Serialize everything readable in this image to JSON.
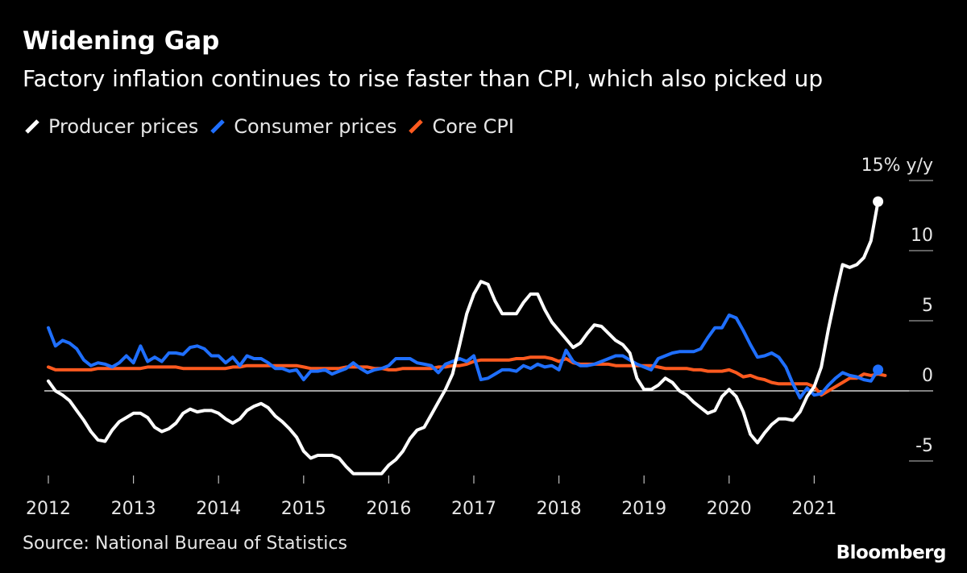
{
  "title": "Widening Gap",
  "subtitle": "Factory inflation continues to rise faster than CPI, which also picked up",
  "source": "Source: National Bureau of Statistics",
  "brand": "Bloomberg",
  "colors": {
    "background": "#000000",
    "producer": "#ffffff",
    "consumer": "#1f6fff",
    "core": "#ff5a1f"
  },
  "chart_data": {
    "type": "line",
    "title": "Widening Gap",
    "subtitle": "Factory inflation continues to rise faster than CPI, which also picked up",
    "ylabel": "15% y/y",
    "xlabel": "",
    "x_start": "2012-01",
    "frequency": "monthly",
    "ylim": [
      -6.5,
      15
    ],
    "y_ticks": [
      {
        "value": 15,
        "label": "15% y/y"
      },
      {
        "value": 10,
        "label": "10"
      },
      {
        "value": 5,
        "label": "5"
      },
      {
        "value": 0,
        "label": "0"
      },
      {
        "value": -5,
        "label": "-5"
      }
    ],
    "x_ticks": [
      {
        "year": "2012",
        "index": 0
      },
      {
        "year": "2013",
        "index": 12
      },
      {
        "year": "2014",
        "index": 24
      },
      {
        "year": "2015",
        "index": 36
      },
      {
        "year": "2016",
        "index": 48
      },
      {
        "year": "2017",
        "index": 60
      },
      {
        "year": "2018",
        "index": 72
      },
      {
        "year": "2019",
        "index": 84
      },
      {
        "year": "2020",
        "index": 96
      },
      {
        "year": "2021",
        "index": 108
      }
    ],
    "legend_position": "top-left",
    "series": [
      {
        "name": "Producer prices",
        "color": "#ffffff",
        "end_marker": true,
        "values": [
          0.7,
          0.0,
          -0.3,
          -0.7,
          -1.4,
          -2.1,
          -2.9,
          -3.5,
          -3.6,
          -2.8,
          -2.2,
          -1.9,
          -1.6,
          -1.6,
          -1.9,
          -2.6,
          -2.9,
          -2.7,
          -2.3,
          -1.6,
          -1.3,
          -1.5,
          -1.4,
          -1.4,
          -1.6,
          -2.0,
          -2.3,
          -2.0,
          -1.4,
          -1.1,
          -0.9,
          -1.2,
          -1.8,
          -2.2,
          -2.7,
          -3.3,
          -4.3,
          -4.8,
          -4.6,
          -4.6,
          -4.6,
          -4.8,
          -5.4,
          -5.9,
          -5.9,
          -5.9,
          -5.9,
          -5.9,
          -5.3,
          -4.9,
          -4.3,
          -3.4,
          -2.8,
          -2.6,
          -1.7,
          -0.8,
          0.1,
          1.2,
          3.3,
          5.5,
          6.9,
          7.8,
          7.6,
          6.4,
          5.5,
          5.5,
          5.5,
          6.3,
          6.9,
          6.9,
          5.8,
          4.9,
          4.3,
          3.7,
          3.1,
          3.4,
          4.1,
          4.7,
          4.6,
          4.1,
          3.6,
          3.3,
          2.7,
          0.9,
          0.1,
          0.1,
          0.4,
          0.9,
          0.6,
          0.0,
          -0.3,
          -0.8,
          -1.2,
          -1.6,
          -1.4,
          -0.4,
          0.1,
          -0.4,
          -1.5,
          -3.1,
          -3.7,
          -3.0,
          -2.4,
          -2.0,
          -2.0,
          -2.1,
          -1.5,
          -0.4,
          0.3,
          1.7,
          4.4,
          6.8,
          9.0,
          8.8,
          9.0,
          9.5,
          10.7,
          13.5
        ]
      },
      {
        "name": "Consumer prices",
        "color": "#1f6fff",
        "end_marker": true,
        "values": [
          4.5,
          3.2,
          3.6,
          3.4,
          3.0,
          2.2,
          1.8,
          2.0,
          1.9,
          1.7,
          2.0,
          2.5,
          2.0,
          3.2,
          2.1,
          2.4,
          2.1,
          2.7,
          2.7,
          2.6,
          3.1,
          3.2,
          3.0,
          2.5,
          2.5,
          2.0,
          2.4,
          1.8,
          2.5,
          2.3,
          2.3,
          2.0,
          1.6,
          1.6,
          1.4,
          1.5,
          0.8,
          1.4,
          1.4,
          1.5,
          1.2,
          1.4,
          1.6,
          2.0,
          1.6,
          1.3,
          1.5,
          1.6,
          1.8,
          2.3,
          2.3,
          2.3,
          2.0,
          1.9,
          1.8,
          1.3,
          1.9,
          2.1,
          2.3,
          2.1,
          2.5,
          0.8,
          0.9,
          1.2,
          1.5,
          1.5,
          1.4,
          1.8,
          1.6,
          1.9,
          1.7,
          1.8,
          1.5,
          2.9,
          2.1,
          1.8,
          1.8,
          1.9,
          2.1,
          2.3,
          2.5,
          2.5,
          2.2,
          1.9,
          1.7,
          1.5,
          2.3,
          2.5,
          2.7,
          2.8,
          2.8,
          2.8,
          3.0,
          3.8,
          4.5,
          4.5,
          5.4,
          5.2,
          4.3,
          3.3,
          2.4,
          2.5,
          2.7,
          2.4,
          1.7,
          0.5,
          -0.5,
          0.2,
          -0.3,
          -0.2,
          0.4,
          0.9,
          1.3,
          1.1,
          1.0,
          0.8,
          0.7,
          1.5
        ]
      },
      {
        "name": "Core CPI",
        "color": "#ff5a1f",
        "end_marker": false,
        "values": [
          1.7,
          1.5,
          1.5,
          1.5,
          1.5,
          1.5,
          1.5,
          1.6,
          1.6,
          1.6,
          1.6,
          1.6,
          1.6,
          1.6,
          1.7,
          1.7,
          1.7,
          1.7,
          1.7,
          1.6,
          1.6,
          1.6,
          1.6,
          1.6,
          1.6,
          1.6,
          1.7,
          1.7,
          1.8,
          1.8,
          1.8,
          1.8,
          1.8,
          1.8,
          1.8,
          1.8,
          1.7,
          1.6,
          1.6,
          1.6,
          1.6,
          1.6,
          1.7,
          1.7,
          1.7,
          1.7,
          1.6,
          1.6,
          1.5,
          1.5,
          1.6,
          1.6,
          1.6,
          1.6,
          1.6,
          1.7,
          1.7,
          1.8,
          1.8,
          1.9,
          2.1,
          2.2,
          2.2,
          2.2,
          2.2,
          2.2,
          2.3,
          2.3,
          2.4,
          2.4,
          2.4,
          2.3,
          2.1,
          2.3,
          2.0,
          1.9,
          1.9,
          1.9,
          1.9,
          1.9,
          1.8,
          1.8,
          1.8,
          1.8,
          1.8,
          1.8,
          1.7,
          1.6,
          1.6,
          1.6,
          1.6,
          1.5,
          1.5,
          1.4,
          1.4,
          1.4,
          1.5,
          1.3,
          1.0,
          1.1,
          0.9,
          0.8,
          0.6,
          0.5,
          0.5,
          0.5,
          0.5,
          0.5,
          0.3,
          -0.3,
          0.0,
          0.3,
          0.6,
          0.9,
          0.9,
          1.2,
          1.1,
          1.2,
          1.1
        ]
      }
    ]
  }
}
